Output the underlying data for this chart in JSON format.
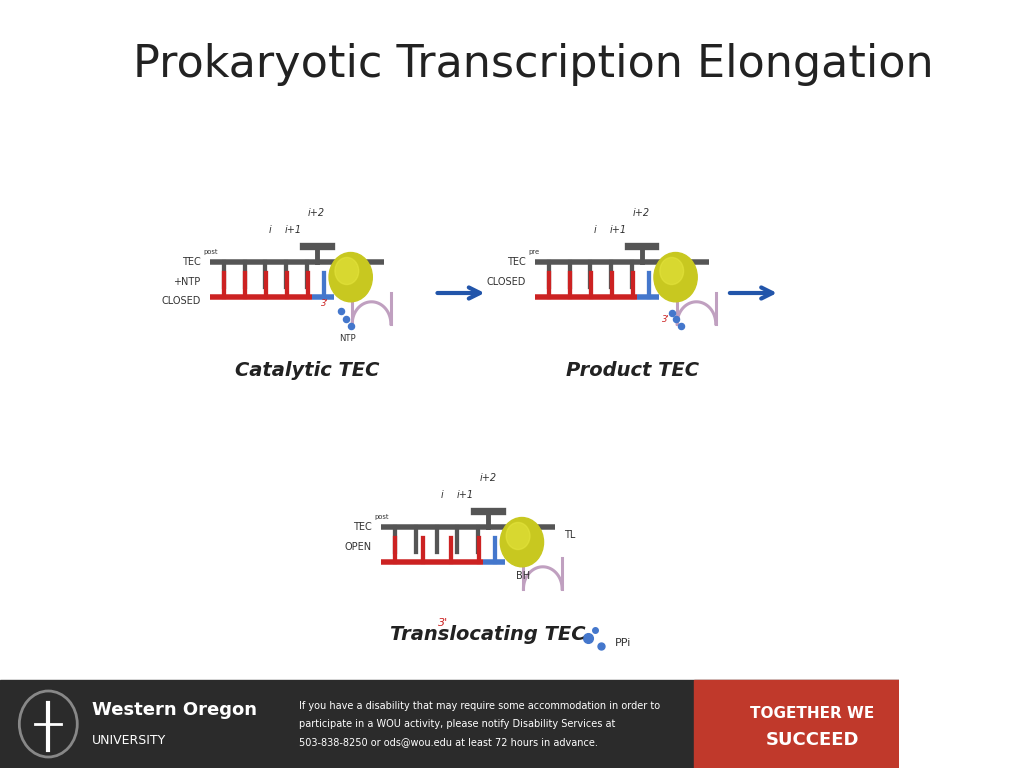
{
  "title": "Prokaryotic Transcription Elongation",
  "bg_color": "#ffffff",
  "footer_bg": "#2b2b2b",
  "footer_red_bg": "#c0392b",
  "panel1_label": "Catalytic TEC",
  "panel2_label": "Product TEC",
  "panel3_label": "Translocating TEC",
  "rail_color": "#555555",
  "red_bar_color": "#cc2222",
  "blue_bar_color": "#4477cc",
  "sphere_color_outer": "#c8c820",
  "sphere_color_inner": "#e8e840",
  "curl_color": "#c0a0c0",
  "ntp_dot_color": "#4477cc",
  "arrow_color": "#2255aa",
  "pos_label_color": "#333333",
  "ppi_dot_color": "#4477cc"
}
